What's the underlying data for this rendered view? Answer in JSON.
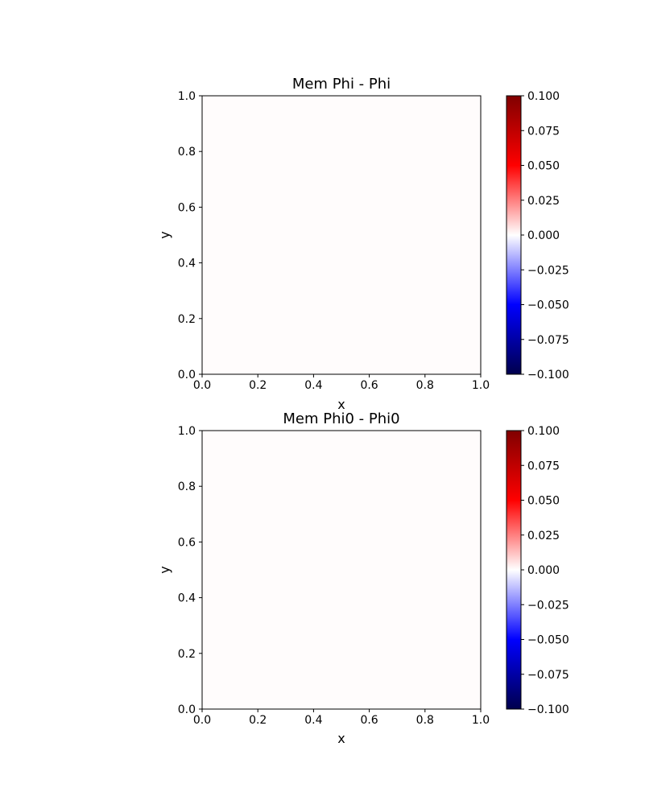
{
  "chart_data": [
    {
      "type": "heatmap",
      "title": "Mem Phi - Phi",
      "xlabel": "x",
      "ylabel": "y",
      "xlim": [
        0.0,
        1.0
      ],
      "ylim": [
        0.0,
        1.0
      ],
      "xticks": [
        "0.0",
        "0.2",
        "0.4",
        "0.6",
        "0.8",
        "1.0"
      ],
      "yticks": [
        "0.0",
        "0.2",
        "0.4",
        "0.6",
        "0.8",
        "1.0"
      ],
      "values": [
        [
          0.0
        ]
      ],
      "fill_color": "#fffcfc",
      "colorbar": {
        "colormap": "seismic",
        "range": [
          -0.1,
          0.1
        ],
        "ticks": [
          "-0.100",
          "-0.075",
          "-0.050",
          "-0.025",
          "0.000",
          "0.025",
          "0.050",
          "0.075",
          "0.100"
        ]
      }
    },
    {
      "type": "heatmap",
      "title": "Mem Phi0 - Phi0",
      "xlabel": "x",
      "ylabel": "y",
      "xlim": [
        0.0,
        1.0
      ],
      "ylim": [
        0.0,
        1.0
      ],
      "xticks": [
        "0.0",
        "0.2",
        "0.4",
        "0.6",
        "0.8",
        "1.0"
      ],
      "yticks": [
        "0.0",
        "0.2",
        "0.4",
        "0.6",
        "0.8",
        "1.0"
      ],
      "values": [
        [
          0.0
        ]
      ],
      "fill_color": "#fffcfc",
      "colorbar": {
        "colormap": "seismic",
        "range": [
          -0.1,
          0.1
        ],
        "ticks": [
          "-0.100",
          "-0.075",
          "-0.050",
          "-0.025",
          "0.000",
          "0.025",
          "0.050",
          "0.075",
          "0.100"
        ]
      }
    }
  ]
}
